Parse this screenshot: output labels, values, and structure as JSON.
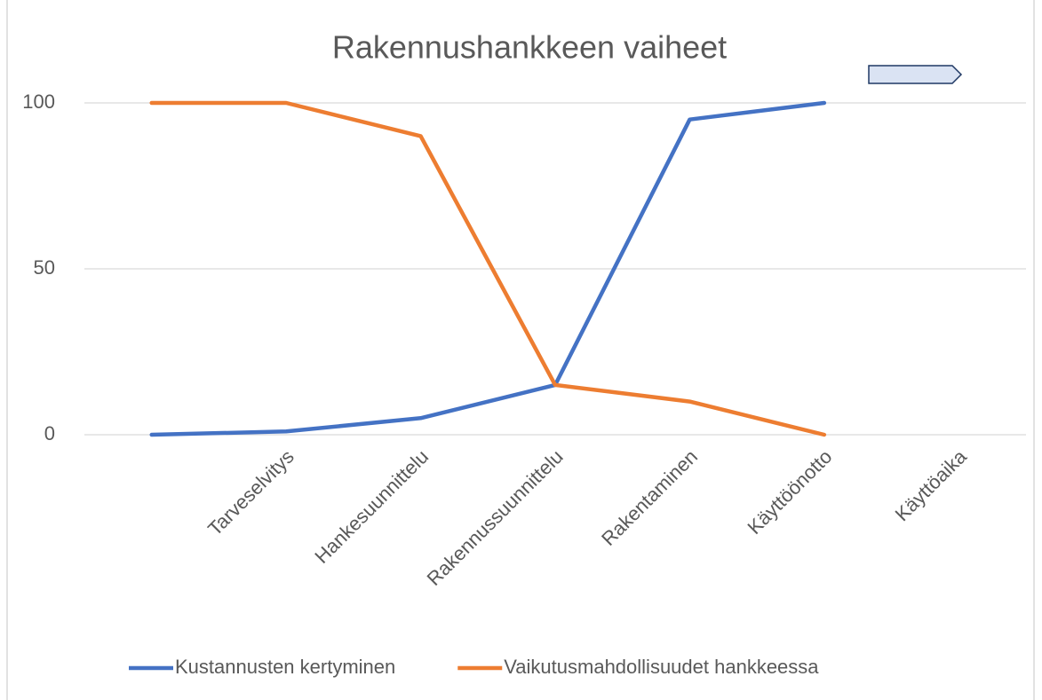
{
  "chart_data": {
    "type": "line",
    "title": "Rakennushankkeen vaiheet",
    "categories": [
      null,
      "Tarveselvitys",
      "Hankesuunnittelu",
      "Rakennussuunnittelu",
      "Rakentaminen",
      "Käyttöönotto",
      "Käyttöaika"
    ],
    "series": [
      {
        "name": "Kustannusten kertyminen",
        "color": "#4472c4",
        "values": [
          0,
          1,
          5,
          15,
          95,
          100,
          null
        ]
      },
      {
        "name": "Vaikutusmahdollisuudet hankkeessa",
        "color": "#ed7d31",
        "values": [
          100,
          100,
          90,
          15,
          10,
          0,
          null
        ]
      }
    ],
    "ylim": [
      0,
      100
    ],
    "yticks": [
      0,
      50,
      100
    ],
    "grid": true,
    "legend": "bottom"
  }
}
